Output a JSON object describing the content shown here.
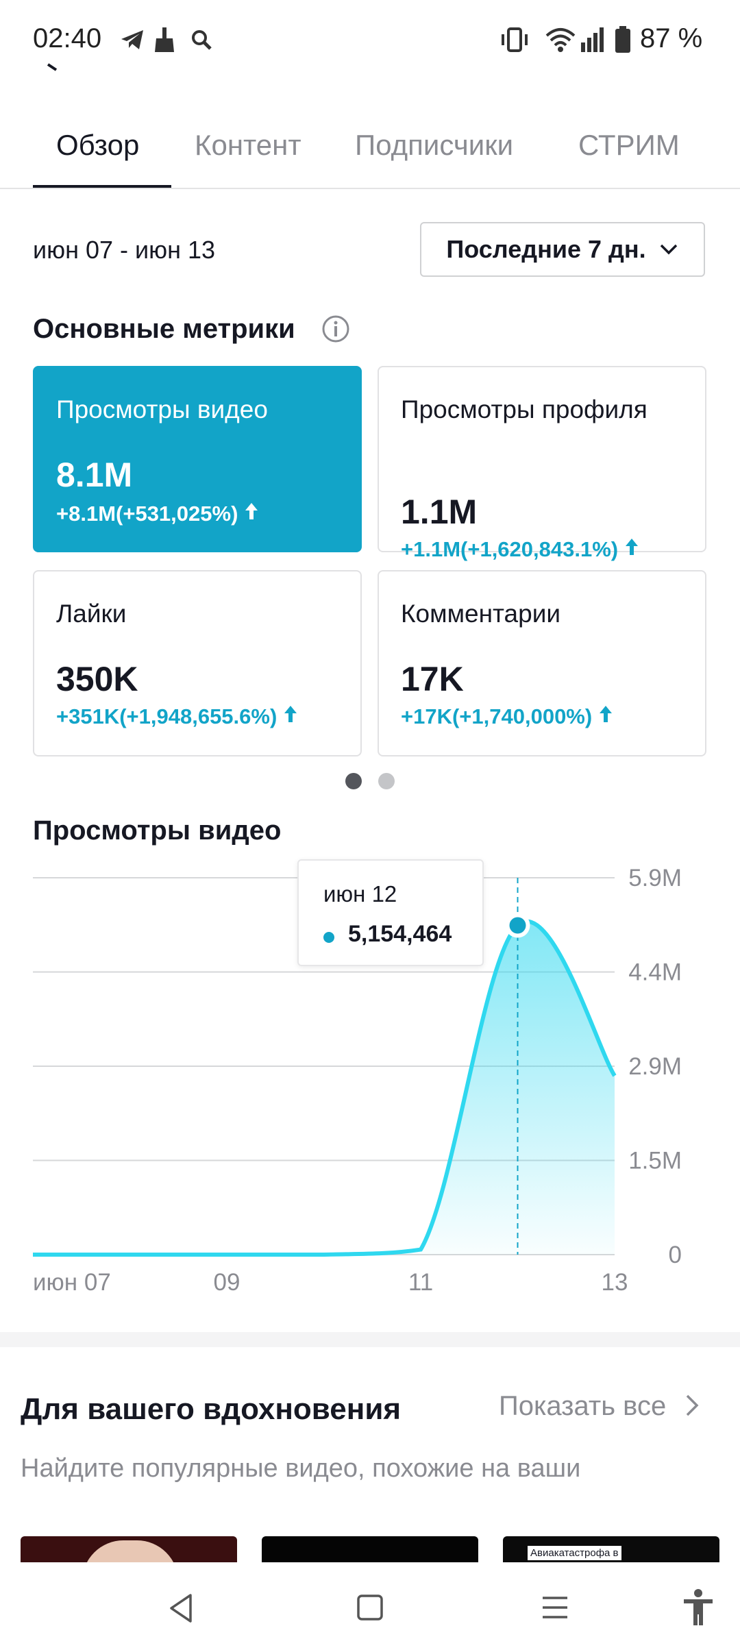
{
  "status_bar": {
    "time": "02:40",
    "battery": "87 %",
    "icons": [
      "telegram-icon",
      "broom-icon",
      "search-icon",
      "vibrate-icon",
      "wifi-icon",
      "signal-icon",
      "battery-icon"
    ]
  },
  "tabs": [
    {
      "label": "Обзор",
      "active": true
    },
    {
      "label": "Контент",
      "active": false
    },
    {
      "label": "Подписчики",
      "active": false
    },
    {
      "label": "СТРИМ",
      "active": false
    }
  ],
  "date_range": "июн 07 - июн 13",
  "period_select": "Последние 7 дн.",
  "metrics": {
    "title": "Основные метрики",
    "cards": [
      {
        "title": "Просмотры видео",
        "value": "8.1M",
        "delta": "+8.1M(+531,025%)",
        "active": true
      },
      {
        "title": "Просмотры профиля",
        "value": "1.1M",
        "delta": "+1.1M(+1,620,843.1%)",
        "active": false
      },
      {
        "title": "Лайки",
        "value": "350K",
        "delta": "+351K(+1,948,655.6%)",
        "active": false
      },
      {
        "title": "Комментарии",
        "value": "17K",
        "delta": "+17K(+1,740,000%)",
        "active": false
      }
    ],
    "page_count": 2,
    "current_page": 1
  },
  "chart_section_title": "Просмотры видео",
  "tooltip": {
    "date": "июн 12",
    "value": "5,154,464"
  },
  "chart_data": {
    "type": "area",
    "title": "Просмотры видео",
    "x_tick_labels": [
      "июн 07",
      "09",
      "11",
      "13"
    ],
    "y_tick_labels": [
      "5.9M",
      "4.4M",
      "2.9M",
      "1.5M",
      "0"
    ],
    "ylim": [
      0,
      5900000
    ],
    "x": [
      "июн 07",
      "июн 08",
      "июн 09",
      "июн 10",
      "июн 11",
      "июн 12",
      "июн 13"
    ],
    "values": [
      0,
      0,
      0,
      0,
      80000,
      5154464,
      2800000
    ],
    "highlight_index": 5,
    "grid": true,
    "color": "#2fd8ef"
  },
  "inspiration": {
    "title": "Для вашего вдохновения",
    "show_all": "Показать все",
    "subtitle": "Найдите популярные видео, похожие на ваши",
    "thumb_text": "Авиакатастрофа в"
  },
  "colors": {
    "accent": "#12a4c8",
    "chart_line": "#2fd8ef",
    "text": "#161823",
    "muted": "#8a8b91"
  }
}
